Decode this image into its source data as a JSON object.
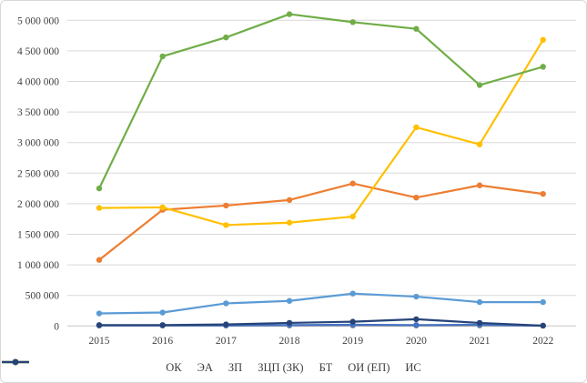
{
  "chart_data": {
    "type": "line",
    "title": "",
    "xlabel": "",
    "ylabel": "",
    "grid": true,
    "legend_position": "bottom",
    "marker": "circle",
    "ylim": [
      0,
      5000000
    ],
    "ytick_step": 500000,
    "ytick_labels": [
      "0",
      "500 000",
      "1 000 000",
      "1 500 000",
      "2 000 000",
      "2 500 000",
      "3 000 000",
      "3 500 000",
      "4 000 000",
      "4 500 000",
      "5 000 000"
    ],
    "categories": [
      "2015",
      "2016",
      "2017",
      "2018",
      "2019",
      "2020",
      "2021",
      "2022"
    ],
    "series": [
      {
        "name": "ОК",
        "color": "#5B9BD5",
        "values": [
          205000,
          220000,
          370000,
          410000,
          530000,
          480000,
          390000,
          390000
        ]
      },
      {
        "name": "ЭА",
        "color": "#ED7D31",
        "values": [
          1080000,
          1900000,
          1970000,
          2060000,
          2330000,
          2100000,
          2300000,
          2160000
        ]
      },
      {
        "name": "ЗП",
        "color": "#A5A5A5",
        "values": [
          5000,
          5000,
          5000,
          5000,
          5000,
          5000,
          5000,
          5000
        ]
      },
      {
        "name": "ЗЦП (ЗК)",
        "color": "#FFC000",
        "values": [
          1930000,
          1940000,
          1650000,
          1690000,
          1790000,
          3250000,
          2970000,
          4680000
        ]
      },
      {
        "name": "БТ",
        "color": "#4472C4",
        "values": [
          10000,
          10000,
          10000,
          15000,
          20000,
          15000,
          20000,
          5000
        ]
      },
      {
        "name": "ОИ (ЕП)",
        "color": "#70AD47",
        "values": [
          2250000,
          4410000,
          4720000,
          5100000,
          4970000,
          4860000,
          3940000,
          4240000
        ]
      },
      {
        "name": "ИС",
        "color": "#264478",
        "values": [
          15000,
          15000,
          25000,
          50000,
          70000,
          110000,
          50000,
          5000
        ]
      }
    ],
    "colors": {
      "gridline": "#D9D9D9",
      "zero_axis": "#C6C6C6",
      "axis_text": "#404040"
    }
  }
}
